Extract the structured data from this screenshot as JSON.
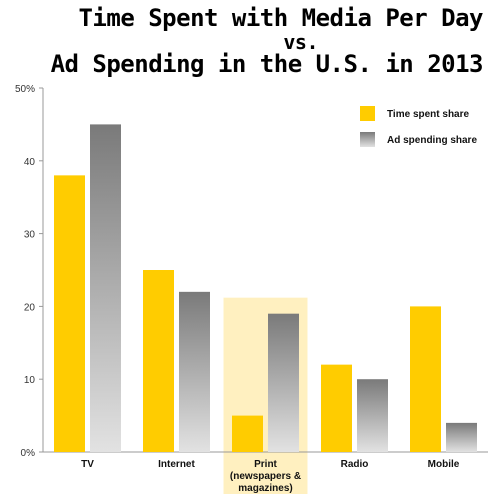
{
  "chart_data": {
    "type": "bar",
    "title": "Time Spent with Media Per Day",
    "title_vs": "vs.",
    "subtitle": "Ad Spending in the U.S. in 2013",
    "categories": [
      "TV",
      "Internet",
      "Print",
      "Radio",
      "Mobile"
    ],
    "category_sublabels": [
      "",
      "",
      "(newspapers &",
      "",
      ""
    ],
    "category_sublabels2": [
      "",
      "",
      "magazines)",
      "",
      ""
    ],
    "highlighted_category": "Print",
    "series": [
      {
        "name": "Time spent share",
        "values": [
          38,
          25,
          5,
          12,
          20
        ],
        "color": "#FFCC00"
      },
      {
        "name": "Ad spending share",
        "values": [
          45,
          22,
          19,
          10,
          4
        ],
        "color": "#888888"
      }
    ],
    "ylim": [
      0,
      50
    ],
    "yticks": [
      "0%",
      "10",
      "20",
      "30",
      "40",
      "50%"
    ],
    "grid": false,
    "legend_position": "top-right",
    "highlight_color": "#FFF0C0"
  }
}
